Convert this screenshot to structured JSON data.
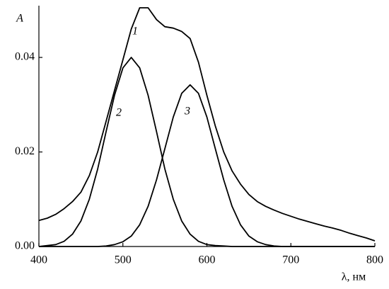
{
  "chart_data": {
    "type": "line",
    "y_label": "A",
    "x_label": "λ, нм",
    "x": [
      400,
      410,
      420,
      430,
      440,
      450,
      460,
      470,
      480,
      490,
      500,
      510,
      520,
      530,
      540,
      550,
      560,
      570,
      580,
      590,
      600,
      610,
      620,
      630,
      640,
      650,
      660,
      670,
      680,
      690,
      700,
      710,
      720,
      730,
      740,
      750,
      760,
      770,
      780,
      790,
      800
    ],
    "series": [
      {
        "name": "1",
        "color": "#000000",
        "values": [
          0.0055,
          0.006,
          0.0068,
          0.008,
          0.0095,
          0.0115,
          0.015,
          0.02,
          0.0265,
          0.033,
          0.0395,
          0.046,
          0.0505,
          0.0505,
          0.048,
          0.0465,
          0.0462,
          0.0455,
          0.044,
          0.039,
          0.032,
          0.0255,
          0.02,
          0.016,
          0.0132,
          0.011,
          0.0095,
          0.0085,
          0.0077,
          0.007,
          0.0064,
          0.0058,
          0.0053,
          0.0048,
          0.0043,
          0.0039,
          0.0034,
          0.0028,
          0.0023,
          0.0018,
          0.0012
        ]
      },
      {
        "name": "2",
        "color": "#000000",
        "values": [
          0.0,
          0.0002,
          0.0004,
          0.0011,
          0.0026,
          0.0054,
          0.01,
          0.0164,
          0.0243,
          0.032,
          0.0378,
          0.04,
          0.0378,
          0.032,
          0.0243,
          0.0164,
          0.01,
          0.0054,
          0.0026,
          0.0011,
          0.0004,
          0.0002,
          0.0001,
          0,
          0,
          0,
          0,
          0,
          0,
          0,
          0,
          0,
          0,
          0,
          0,
          0,
          0,
          0,
          0,
          0,
          0
        ]
      },
      {
        "name": "3",
        "color": "#000000",
        "values": [
          0,
          0,
          0,
          0,
          0,
          0,
          0,
          0,
          0.0001,
          0.0004,
          0.001,
          0.0022,
          0.0046,
          0.0085,
          0.0141,
          0.0207,
          0.0274,
          0.0324,
          0.0342,
          0.0324,
          0.0274,
          0.0207,
          0.0141,
          0.0085,
          0.0046,
          0.0022,
          0.001,
          0.0004,
          0.0001,
          0,
          0,
          0,
          0,
          0,
          0,
          0,
          0,
          0,
          0,
          0,
          0
        ]
      }
    ],
    "xlim": [
      400,
      800
    ],
    "xticks": [
      400,
      500,
      600,
      700,
      800
    ],
    "ylim": [
      0,
      0.052
    ],
    "yticks": [
      {
        "value": 0,
        "label": "0.00"
      },
      0.02,
      0.04
    ]
  }
}
